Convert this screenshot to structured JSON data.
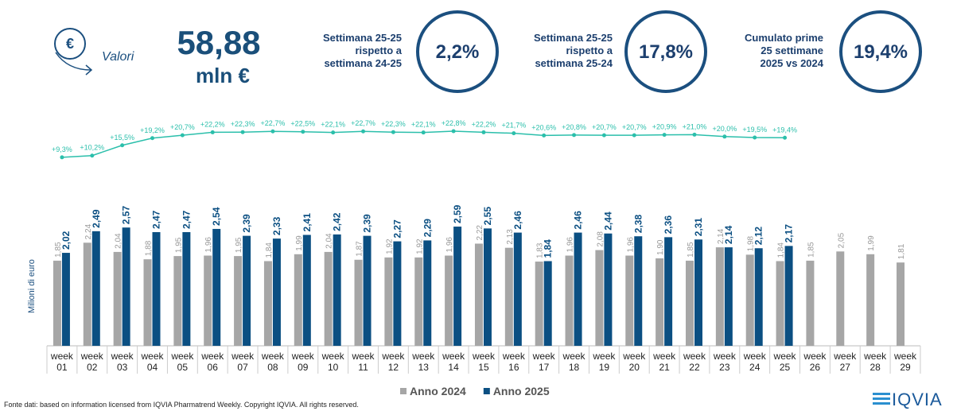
{
  "header": {
    "icon_label": "Valori",
    "total": "58,88",
    "unit": "mln €"
  },
  "kpis": [
    {
      "label": "Settimana 25-25\nrispetto a\nsettimana 24-25",
      "value": "2,2%"
    },
    {
      "label": "Settimana 25-25\nrispetto a\nsettimana 25-24",
      "value": "17,8%"
    },
    {
      "label": "Cumulato prime\n25 settimane\n2025 vs 2024",
      "value": "19,4%"
    }
  ],
  "chart_data": {
    "type": "bar",
    "y_label": "Milioni di euro",
    "categories": [
      "week 01",
      "week 02",
      "week 03",
      "week 04",
      "week 05",
      "week 06",
      "week 07",
      "week 08",
      "week 09",
      "week 10",
      "week 11",
      "week 12",
      "week 13",
      "week 14",
      "week 15",
      "week 16",
      "week 17",
      "week 18",
      "week 19",
      "week 20",
      "week 21",
      "week 22",
      "week 23",
      "week 24",
      "week 25",
      "week 26",
      "week 27",
      "week 28",
      "week 29"
    ],
    "ylim": [
      0,
      4.75
    ],
    "y2lim": [
      0,
      25
    ],
    "legend": "bottom",
    "series": [
      {
        "name": "Anno 2024",
        "color": "#a6a6a6",
        "values": [
          1.85,
          2.24,
          2.04,
          1.88,
          1.95,
          1.96,
          1.95,
          1.84,
          1.99,
          2.04,
          1.87,
          1.92,
          1.92,
          1.96,
          2.22,
          2.13,
          1.83,
          1.96,
          2.08,
          1.96,
          1.9,
          1.85,
          2.14,
          1.98,
          1.84,
          1.85,
          2.05,
          1.99,
          1.81
        ],
        "value_labels": [
          "1,85",
          "2,24",
          "2,04",
          "1,88",
          "1,95",
          "1,96",
          "1,95",
          "1,84",
          "1,99",
          "2,04",
          "1,87",
          "1,92",
          "1,92",
          "1,96",
          "2,22",
          "2,13",
          "1,83",
          "1,96",
          "2,08",
          "1,96",
          "1,90",
          "1,85",
          "2,14",
          "1,98",
          "1,84",
          "1,85",
          "2,05",
          "1,99",
          "1,81"
        ]
      },
      {
        "name": "Anno 2025",
        "color": "#0b4f82",
        "values": [
          2.02,
          2.49,
          2.57,
          2.47,
          2.47,
          2.54,
          2.39,
          2.33,
          2.41,
          2.42,
          2.39,
          2.27,
          2.29,
          2.59,
          2.55,
          2.46,
          1.84,
          2.46,
          2.44,
          2.38,
          2.36,
          2.31,
          2.14,
          2.12,
          2.17,
          null,
          null,
          null,
          null
        ],
        "value_labels": [
          "2,02",
          "2,49",
          "2,57",
          "2,47",
          "2,47",
          "2,54",
          "2,39",
          "2,33",
          "2,41",
          "2,42",
          "2,39",
          "2,27",
          "2,29",
          "2,59",
          "2,55",
          "2,46",
          "1,84",
          "2,46",
          "2,44",
          "2,38",
          "2,36",
          "2,31",
          "2,14",
          "2,12",
          "2,17",
          null,
          null,
          null,
          null
        ]
      },
      {
        "type": "line",
        "axis": "y2",
        "color": "#2bbfab",
        "values": [
          9.3,
          10.2,
          15.5,
          19.2,
          20.7,
          22.2,
          22.3,
          22.7,
          22.5,
          22.1,
          22.7,
          22.3,
          22.1,
          22.8,
          22.2,
          21.7,
          20.6,
          20.8,
          20.7,
          20.7,
          20.9,
          21.0,
          20.0,
          19.5,
          19.4,
          null,
          null,
          null,
          null
        ],
        "value_labels": [
          "+9,3%",
          "+10,2%",
          "+15,5%",
          "+19,2%",
          "+20,7%",
          "+22,2%",
          "+22,3%",
          "+22,7%",
          "+22,5%",
          "+22,1%",
          "+22,7%",
          "+22,3%",
          "+22,1%",
          "+22,8%",
          "+22,2%",
          "+21,7%",
          "+20,6%",
          "+20,8%",
          "+20,7%",
          "+20,7%",
          "+20,9%",
          "+21,0%",
          "+20,0%",
          "+19,5%",
          "+19,4%",
          null,
          null,
          null,
          null
        ]
      }
    ]
  },
  "footer": "Fonte dati: based on information licensed from IQVIA Pharmatrend Weekly. Copyright IQVIA. All rights reserved.",
  "logo": "IQVIA"
}
